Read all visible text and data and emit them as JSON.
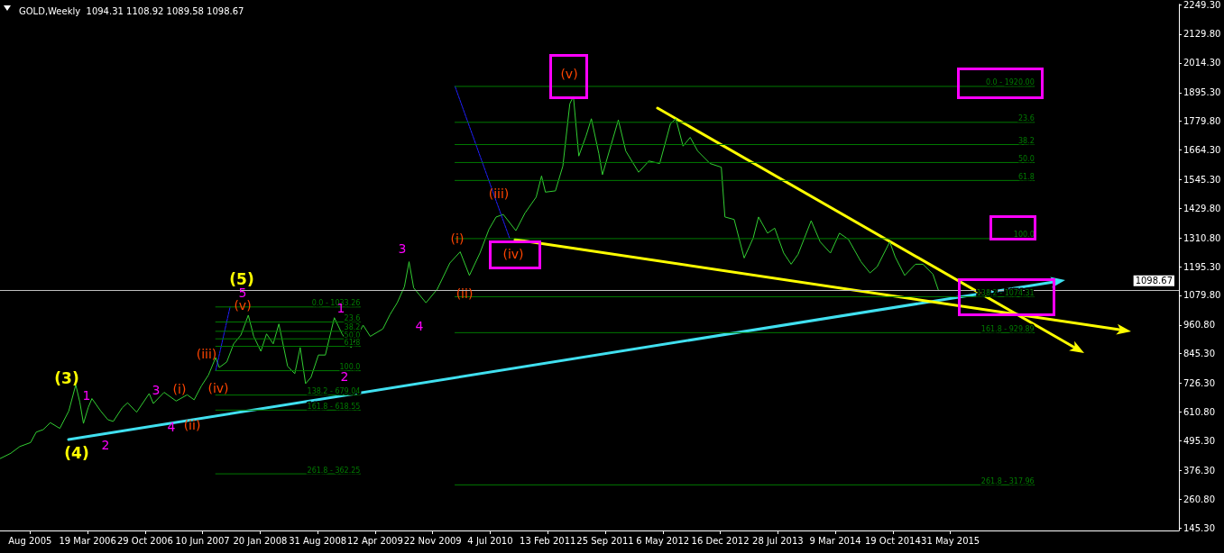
{
  "chart_data": {
    "type": "line",
    "title": "GOLD,Weekly  1094.31 1108.92 1089.58 1098.67",
    "xlim": [
      "2005-04-12",
      "2017-11-06"
    ],
    "xticks": [
      {
        "value": "2005-08-07",
        "label": "Aug 2005"
      },
      {
        "value": "2006-03-19",
        "label": "19 Mar 2006"
      },
      {
        "value": "2006-10-29",
        "label": "29 Oct 2006"
      },
      {
        "value": "2007-06-10",
        "label": "10 Jun 2007"
      },
      {
        "value": "2008-01-20",
        "label": "20 Jan 2008"
      },
      {
        "value": "2008-08-31",
        "label": "31 Aug 2008"
      },
      {
        "value": "2009-04-12",
        "label": "12 Apr 2009"
      },
      {
        "value": "2009-11-22",
        "label": "22 Nov 2009"
      },
      {
        "value": "2010-07-04",
        "label": "4 Jul 2010"
      },
      {
        "value": "2011-02-13",
        "label": "13 Feb 2011"
      },
      {
        "value": "2011-09-25",
        "label": "25 Sep 2011"
      },
      {
        "value": "2012-05-06",
        "label": "6 May 2012"
      },
      {
        "value": "2012-12-16",
        "label": "16 Dec 2012"
      },
      {
        "value": "2013-07-28",
        "label": "28 Jul 2013"
      },
      {
        "value": "2014-03-09",
        "label": "9 Mar 2014"
      },
      {
        "value": "2014-10-19",
        "label": "19 Oct 2014"
      },
      {
        "value": "2015-05-31",
        "label": "31 May 2015"
      }
    ],
    "ylim": [
      134.5,
      2250
    ],
    "yticks": [
      {
        "value": 145.3,
        "label": "145.30"
      },
      {
        "value": 260.8,
        "label": "260.80"
      },
      {
        "value": 376.3,
        "label": "376.30"
      },
      {
        "value": 495.3,
        "label": "495.30"
      },
      {
        "value": 610.8,
        "label": "610.80"
      },
      {
        "value": 726.3,
        "label": "726.30"
      },
      {
        "value": 845.3,
        "label": "845.30"
      },
      {
        "value": 960.8,
        "label": "960.80"
      },
      {
        "value": 1079.8,
        "label": "1079.80"
      },
      {
        "value": 1195.3,
        "label": "1195.30"
      },
      {
        "value": 1310.8,
        "label": "1310.80"
      },
      {
        "value": 1429.8,
        "label": "1429.80"
      },
      {
        "value": 1545.3,
        "label": "1545.30"
      },
      {
        "value": 1664.3,
        "label": "1664.30"
      },
      {
        "value": 1779.8,
        "label": "1779.80"
      },
      {
        "value": 1895.3,
        "label": "1895.30"
      },
      {
        "value": 2014.3,
        "label": "2014.30"
      },
      {
        "value": 2129.8,
        "label": "2129.80"
      },
      {
        "value": 2249.3,
        "label": "2249.30"
      }
    ],
    "grid": false,
    "marker": "none",
    "ref_lines": [
      {
        "axis": "y",
        "value": 1098.67,
        "label": "1098.67",
        "color": "#c0c0c0"
      }
    ],
    "series": [
      {
        "color": "#32cd32",
        "x": [
          "2005-04-13",
          "2005-05-24",
          "2005-06-28",
          "2005-08-09",
          "2005-08-31",
          "2005-09-27",
          "2005-10-25",
          "2005-12-01",
          "2006-01-05",
          "2006-02-01",
          "2006-02-17",
          "2006-03-03",
          "2006-03-22",
          "2006-04-05",
          "2006-05-09",
          "2006-06-06",
          "2006-06-27",
          "2006-08-01",
          "2006-08-22",
          "2006-09-26",
          "2006-11-14",
          "2006-11-30",
          "2007-01-11",
          "2007-02-27",
          "2007-04-11",
          "2007-05-08",
          "2007-06-05",
          "2007-07-03",
          "2007-07-31",
          "2007-08-14",
          "2007-09-12",
          "2007-10-09",
          "2007-11-06",
          "2007-12-05",
          "2007-12-26",
          "2008-01-23",
          "2008-02-14",
          "2008-03-11",
          "2008-04-02",
          "2008-05-06",
          "2008-06-03",
          "2008-06-24",
          "2008-07-15",
          "2008-08-05",
          "2008-09-03",
          "2008-09-30",
          "2008-11-04",
          "2008-12-04",
          "2009-01-08",
          "2009-02-24",
          "2009-03-24",
          "2009-05-12",
          "2009-06-09",
          "2009-07-07",
          "2009-08-04",
          "2009-08-22",
          "2009-09-09",
          "2009-10-27",
          "2009-12-10",
          "2010-01-28",
          "2010-03-09",
          "2010-04-14",
          "2010-05-25",
          "2010-06-29",
          "2010-07-27",
          "2010-08-24",
          "2010-10-12",
          "2010-11-16",
          "2010-12-30",
          "2011-01-20",
          "2011-02-04",
          "2011-03-15",
          "2011-04-13",
          "2011-05-10",
          "2011-05-24",
          "2011-06-14",
          "2011-07-12",
          "2011-08-02",
          "2011-08-31",
          "2011-09-14",
          "2011-11-15",
          "2011-12-14",
          "2012-02-02",
          "2012-03-13",
          "2012-04-24",
          "2012-06-05",
          "2012-06-26",
          "2012-07-24",
          "2012-08-21",
          "2012-09-19",
          "2012-11-06",
          "2012-12-20",
          "2013-01-03",
          "2013-02-08",
          "2013-03-19",
          "2013-04-23",
          "2013-05-14",
          "2013-06-18",
          "2013-07-16",
          "2013-08-20",
          "2013-09-18",
          "2013-10-15",
          "2013-12-05",
          "2014-01-09",
          "2014-02-18",
          "2014-03-25",
          "2014-04-29",
          "2014-06-17",
          "2014-07-22",
          "2014-08-19",
          "2014-10-07",
          "2014-10-28",
          "2014-12-04",
          "2015-01-15",
          "2015-02-13",
          "2015-03-24",
          "2015-04-15"
        ],
        "values": [
          424,
          445,
          472,
          488,
          530,
          540,
          568,
          545,
          615,
          720,
          650,
          565,
          630,
          665,
          615,
          580,
          573,
          628,
          648,
          610,
          685,
          645,
          690,
          655,
          680,
          660,
          715,
          760,
          830,
          790,
          812,
          885,
          920,
          1000,
          915,
          855,
          925,
          885,
          965,
          795,
          765,
          870,
          725,
          750,
          840,
          840,
          990,
          925,
          870,
          960,
          915,
          945,
          1003,
          1050,
          1115,
          1215,
          1110,
          1050,
          1105,
          1210,
          1255,
          1160,
          1250,
          1345,
          1395,
          1405,
          1340,
          1410,
          1475,
          1560,
          1495,
          1500,
          1600,
          1850,
          1880,
          1640,
          1720,
          1790,
          1650,
          1565,
          1785,
          1660,
          1575,
          1620,
          1610,
          1770,
          1790,
          1680,
          1715,
          1660,
          1610,
          1595,
          1395,
          1385,
          1230,
          1310,
          1395,
          1330,
          1350,
          1250,
          1205,
          1245,
          1380,
          1295,
          1250,
          1330,
          1305,
          1215,
          1170,
          1195,
          1295,
          1235,
          1160,
          1205,
          1205,
          1165,
          1098.67
        ]
      },
      {
        "name": "0.0 - 1033.26",
        "color": "#007a00",
        "x": [
          "2007-07-31",
          "2009-02-13"
        ],
        "values": [
          1033.26,
          1033.26
        ]
      },
      {
        "name": "23.6",
        "color": "#007a00",
        "x": [
          "2007-07-31",
          "2009-02-13"
        ],
        "values": [
          972.77,
          972.77
        ]
      },
      {
        "name": "38.2",
        "color": "#007a00",
        "x": [
          "2007-07-31",
          "2009-02-13"
        ],
        "values": [
          935.35,
          935.35
        ]
      },
      {
        "name": "50.0",
        "color": "#007a00",
        "x": [
          "2007-07-31",
          "2009-02-13"
        ],
        "values": [
          905.11,
          905.11
        ]
      },
      {
        "name": "61.8",
        "color": "#007a00",
        "x": [
          "2007-07-31",
          "2009-02-13"
        ],
        "values": [
          874.87,
          874.87
        ]
      },
      {
        "name": "100.0",
        "color": "#007a00",
        "x": [
          "2007-07-31",
          "2009-02-13"
        ],
        "values": [
          776.96,
          776.96
        ]
      },
      {
        "name": "138.2 - 679.04",
        "color": "#007a00",
        "x": [
          "2007-07-31",
          "2009-02-13"
        ],
        "values": [
          679.04,
          679.04
        ]
      },
      {
        "name": "161.8 - 618.55",
        "color": "#007a00",
        "x": [
          "2007-07-31",
          "2009-02-13"
        ],
        "values": [
          618.55,
          618.55
        ]
      },
      {
        "name": "261.8 - 362.25",
        "color": "#007a00",
        "x": [
          "2007-07-31",
          "2009-02-13"
        ],
        "values": [
          362.25,
          362.25
        ]
      },
      {
        "name": "0.0 - 1920.00",
        "color": "#007a00",
        "x": [
          "2010-02-17",
          "2016-04-22"
        ],
        "values": [
          1920,
          1920
        ]
      },
      {
        "name": "23.6",
        "color": "#007a00",
        "x": [
          "2010-02-17",
          "2016-04-22"
        ],
        "values": [
          1775.58,
          1775.58
        ]
      },
      {
        "name": "38.2",
        "color": "#007a00",
        "x": [
          "2010-02-17",
          "2016-04-22"
        ],
        "values": [
          1686.24,
          1686.24
        ]
      },
      {
        "name": "50.0",
        "color": "#007a00",
        "x": [
          "2010-02-17",
          "2016-04-22"
        ],
        "values": [
          1614.03,
          1614.03
        ]
      },
      {
        "name": "61.8",
        "color": "#007a00",
        "x": [
          "2010-02-17",
          "2016-04-22"
        ],
        "values": [
          1541.83,
          1541.83
        ]
      },
      {
        "name": "100.0",
        "color": "#007a00",
        "x": [
          "2010-02-17",
          "2016-04-22"
        ],
        "values": [
          1308.07,
          1308.07
        ]
      },
      {
        "name": "138.2 - 1074.31",
        "color": "#007a00",
        "x": [
          "2010-02-17",
          "2016-04-22"
        ],
        "values": [
          1074.31,
          1074.31
        ]
      },
      {
        "name": "161.8 - 929.89",
        "color": "#007a00",
        "x": [
          "2010-02-17",
          "2016-04-22"
        ],
        "values": [
          929.89,
          929.89
        ]
      },
      {
        "name": "261.8 - 317.96",
        "color": "#007a00",
        "x": [
          "2010-02-17",
          "2016-04-22"
        ],
        "values": [
          317.96,
          317.96
        ]
      },
      {
        "color": "#2020ff",
        "line_style": "dotted",
        "x": [
          "2007-07-31",
          "2007-09-25"
        ],
        "values": [
          776.96,
          1033.26
        ]
      },
      {
        "color": "#2020ff",
        "line_style": "dotted",
        "x": [
          "2010-02-17",
          "2010-09-18"
        ],
        "values": [
          1920,
          1308.07
        ]
      }
    ],
    "annotations": [
      "(3)",
      "(4)",
      "(5)",
      "1",
      "2",
      "3",
      "4",
      "5",
      "1",
      "2",
      "3",
      "4",
      "(i)",
      "(ii)",
      "(iii)",
      "(iv)",
      "(v)",
      "(i)",
      "(ii)",
      "(iii)",
      "(iv)",
      "(v)"
    ]
  }
}
